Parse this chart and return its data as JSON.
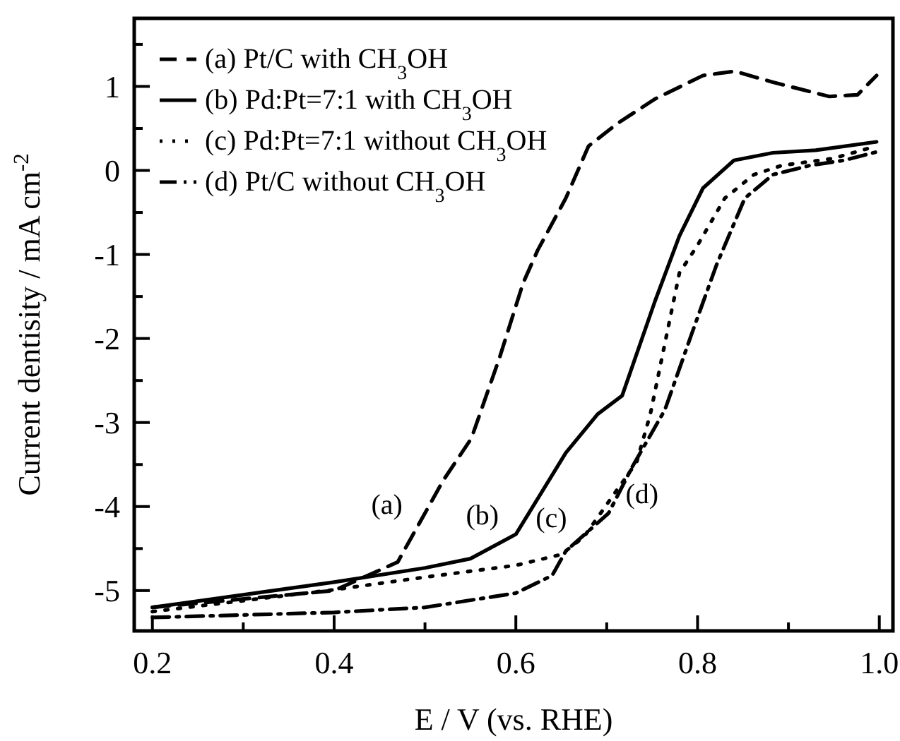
{
  "chart_data": {
    "type": "line",
    "xlabel": "E / V (vs. RHE)",
    "ylabel": "Current dentisity / mA cm$^{-2}$",
    "xlim": [
      0.18,
      1.015
    ],
    "ylim": [
      -5.48,
      1.81
    ],
    "xticks": [
      {
        "value": 0.2,
        "label": "0.2"
      },
      {
        "value": 0.3,
        "label": null
      },
      {
        "value": 0.4,
        "label": "0.4"
      },
      {
        "value": 0.5,
        "label": null
      },
      {
        "value": 0.6,
        "label": "0.6"
      },
      {
        "value": 0.7,
        "label": null
      },
      {
        "value": 0.8,
        "label": "0.8"
      },
      {
        "value": 0.9,
        "label": null
      },
      {
        "value": 1.0,
        "label": "1.0"
      }
    ],
    "yticks": [
      {
        "value": -5,
        "label": "-5"
      },
      {
        "value": -4.5,
        "label": null
      },
      {
        "value": -4,
        "label": "-4"
      },
      {
        "value": -3.5,
        "label": null
      },
      {
        "value": -3,
        "label": "-3"
      },
      {
        "value": -2.5,
        "label": null
      },
      {
        "value": -2,
        "label": "-2"
      },
      {
        "value": -1.5,
        "label": null
      },
      {
        "value": -1,
        "label": "-1"
      },
      {
        "value": -0.5,
        "label": null
      },
      {
        "value": 0,
        "label": "0"
      },
      {
        "value": 0.5,
        "label": null
      },
      {
        "value": 1,
        "label": "1"
      },
      {
        "value": 1.5,
        "label": null
      }
    ],
    "grid": false,
    "legend": "top left",
    "marker": "none",
    "series": [
      {
        "name": "(a) Pt/C with CH$_{3}$OH",
        "color": "#000000",
        "line_style": "dashed",
        "x": [
          0.2,
          0.4,
          0.47,
          0.52,
          0.551,
          0.582,
          0.608,
          0.624,
          0.655,
          0.68,
          0.712,
          0.753,
          0.806,
          0.841,
          0.883,
          0.945,
          0.976,
          0.997
        ],
        "values": [
          -5.2,
          -5.0,
          -4.66,
          -3.69,
          -3.19,
          -2.23,
          -1.34,
          -0.95,
          -0.33,
          0.29,
          0.56,
          0.85,
          1.13,
          1.18,
          1.05,
          0.88,
          0.9,
          1.13
        ]
      },
      {
        "name": "(b) Pd:Pt=7:1 with CH$_{3}$OH",
        "color": "#000000",
        "line_style": "solid",
        "x": [
          0.2,
          0.4,
          0.5,
          0.55,
          0.6,
          0.655,
          0.69,
          0.717,
          0.753,
          0.78,
          0.806,
          0.84,
          0.883,
          0.93,
          0.997
        ],
        "values": [
          -5.2,
          -4.9,
          -4.73,
          -4.62,
          -4.33,
          -3.36,
          -2.9,
          -2.68,
          -1.56,
          -0.78,
          -0.21,
          0.12,
          0.21,
          0.24,
          0.34
        ]
      },
      {
        "name": "(c) Pd:Pt=7:1 without CH$_{3}$OH",
        "color": "#000000",
        "line_style": "dotted",
        "x": [
          0.2,
          0.4,
          0.5,
          0.6,
          0.65,
          0.675,
          0.733,
          0.748,
          0.78,
          0.8,
          0.83,
          0.862,
          0.893,
          0.948,
          0.997
        ],
        "values": [
          -5.25,
          -4.99,
          -4.84,
          -4.7,
          -4.57,
          -4.36,
          -3.47,
          -2.9,
          -1.22,
          -0.89,
          -0.33,
          -0.05,
          0.06,
          0.14,
          0.29
        ]
      },
      {
        "name": "(d) Pt/C without CH$_{3}$OH",
        "color": "#000000",
        "line_style": "dashdot",
        "x": [
          0.2,
          0.4,
          0.5,
          0.6,
          0.64,
          0.655,
          0.702,
          0.728,
          0.764,
          0.795,
          0.821,
          0.852,
          0.883,
          0.924,
          0.961,
          0.997
        ],
        "values": [
          -5.32,
          -5.26,
          -5.2,
          -5.03,
          -4.82,
          -4.53,
          -4.08,
          -3.53,
          -2.85,
          -1.9,
          -1.12,
          -0.33,
          -0.05,
          0.06,
          0.12,
          0.22
        ]
      }
    ],
    "annotations": [
      {
        "text": "(a)",
        "x": 0.494,
        "y": -4.2
      },
      {
        "text": "(b)",
        "x": 0.6,
        "y": -4.33
      },
      {
        "text": "(c)",
        "x": 0.675,
        "y": -4.36
      },
      {
        "text": "(d)",
        "x": 0.702,
        "y": -4.08
      }
    ]
  }
}
